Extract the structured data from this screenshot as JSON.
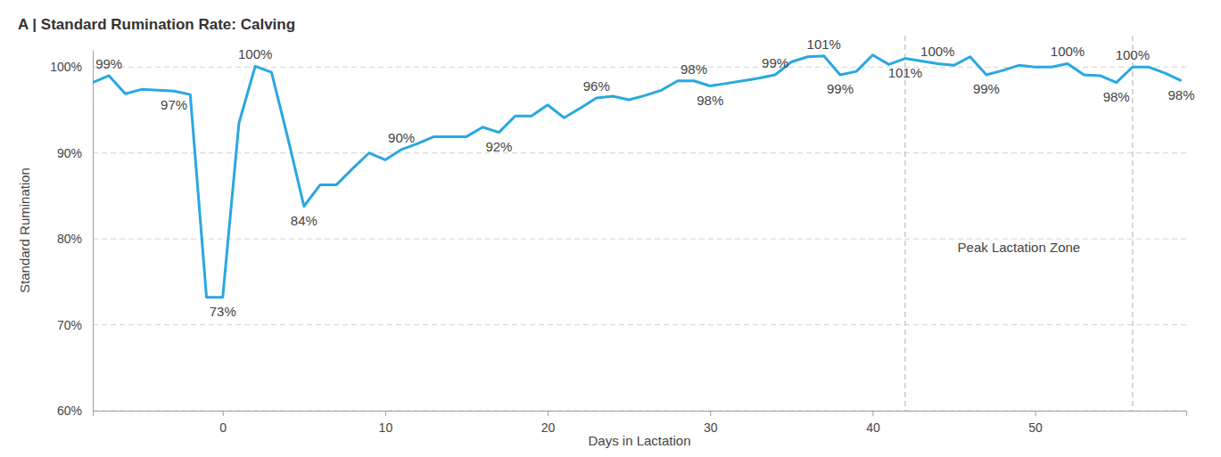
{
  "chart_data": {
    "type": "line",
    "title": "A | Standard Rumination Rate: Calving",
    "x_label": "Days in Lactation",
    "y_label": "Standard Rumination",
    "x": [
      -8,
      -7,
      -6,
      -5,
      -4,
      -3,
      -2,
      -1,
      0,
      1,
      2,
      3,
      4,
      5,
      6,
      7,
      8,
      9,
      10,
      11,
      12,
      13,
      14,
      15,
      16,
      17,
      18,
      19,
      20,
      21,
      22,
      23,
      24,
      25,
      26,
      27,
      28,
      29,
      30,
      31,
      32,
      33,
      34,
      35,
      36,
      37,
      38,
      39,
      40,
      41,
      42,
      43,
      44,
      45,
      46,
      47,
      48,
      49,
      50,
      51,
      52,
      53,
      54,
      55,
      56,
      57,
      58,
      59
    ],
    "values": [
      98.2,
      99.0,
      96.9,
      97.4,
      97.3,
      97.2,
      96.8,
      73.2,
      73.2,
      93.5,
      100.1,
      99.4,
      91.8,
      83.8,
      86.3,
      86.3,
      88.2,
      90.0,
      89.2,
      90.4,
      91.1,
      91.9,
      91.9,
      91.9,
      93.0,
      92.4,
      94.3,
      94.3,
      95.6,
      94.1,
      95.2,
      96.4,
      96.6,
      96.2,
      96.7,
      97.3,
      98.4,
      98.4,
      97.8,
      98.1,
      98.4,
      98.7,
      99.1,
      100.6,
      101.2,
      101.3,
      99.1,
      99.5,
      101.4,
      100.3,
      101.0,
      100.7,
      100.4,
      100.2,
      101.2,
      99.1,
      99.6,
      100.2,
      100.0,
      100.0,
      100.4,
      99.1,
      99.0,
      98.2,
      100.0,
      100.0,
      99.3,
      98.4
    ],
    "value_labels": [
      null,
      "99%",
      null,
      null,
      null,
      "97%",
      null,
      null,
      "73%",
      null,
      "100%",
      null,
      null,
      "84%",
      null,
      null,
      null,
      null,
      null,
      "90%",
      null,
      null,
      null,
      null,
      null,
      "92%",
      null,
      null,
      null,
      null,
      null,
      "96%",
      null,
      null,
      null,
      null,
      null,
      "98%",
      "98%",
      null,
      null,
      null,
      "99%",
      null,
      null,
      "101%",
      "99%",
      null,
      null,
      null,
      "101%",
      null,
      "100%",
      null,
      null,
      "99%",
      null,
      null,
      null,
      null,
      "100%",
      null,
      null,
      "98%",
      "100%",
      null,
      null,
      "98%"
    ],
    "color": "#29a8e0",
    "data_labels": true,
    "xlim": [
      -8,
      59.3
    ],
    "xticks": [
      0,
      10,
      20,
      30,
      40,
      50
    ],
    "ylim": [
      60,
      102
    ],
    "yticks": [
      {
        "value": 60,
        "label": "60%"
      },
      {
        "value": 70,
        "label": "70%"
      },
      {
        "value": 80,
        "label": "80%"
      },
      {
        "value": 90,
        "label": "90%"
      },
      {
        "value": 100,
        "label": "100%"
      }
    ],
    "grid": true,
    "annotations": [
      {
        "text": "Peak Lactation Zone",
        "x": [
          42,
          56
        ]
      }
    ]
  }
}
